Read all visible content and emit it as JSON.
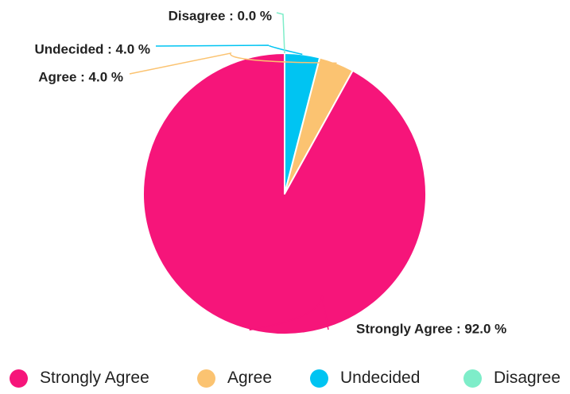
{
  "chart_data": {
    "type": "pie",
    "title": "",
    "categories": [
      "Strongly Agree",
      "Agree",
      "Undecided",
      "Disagree"
    ],
    "values": [
      92.0,
      4.0,
      4.0,
      0.0
    ],
    "colors": [
      "#f6157a",
      "#fbc371",
      "#00c4f2",
      "#7eedc9"
    ],
    "slice_labels": [
      "Strongly Agree : 92.0 %",
      "Agree : 4.0 %",
      "Undecided : 4.0 %",
      "Disagree : 0.0 %"
    ],
    "legend": {
      "position": "bottom",
      "items": [
        "Strongly Agree",
        "Agree",
        "Undecided",
        "Disagree"
      ]
    }
  }
}
